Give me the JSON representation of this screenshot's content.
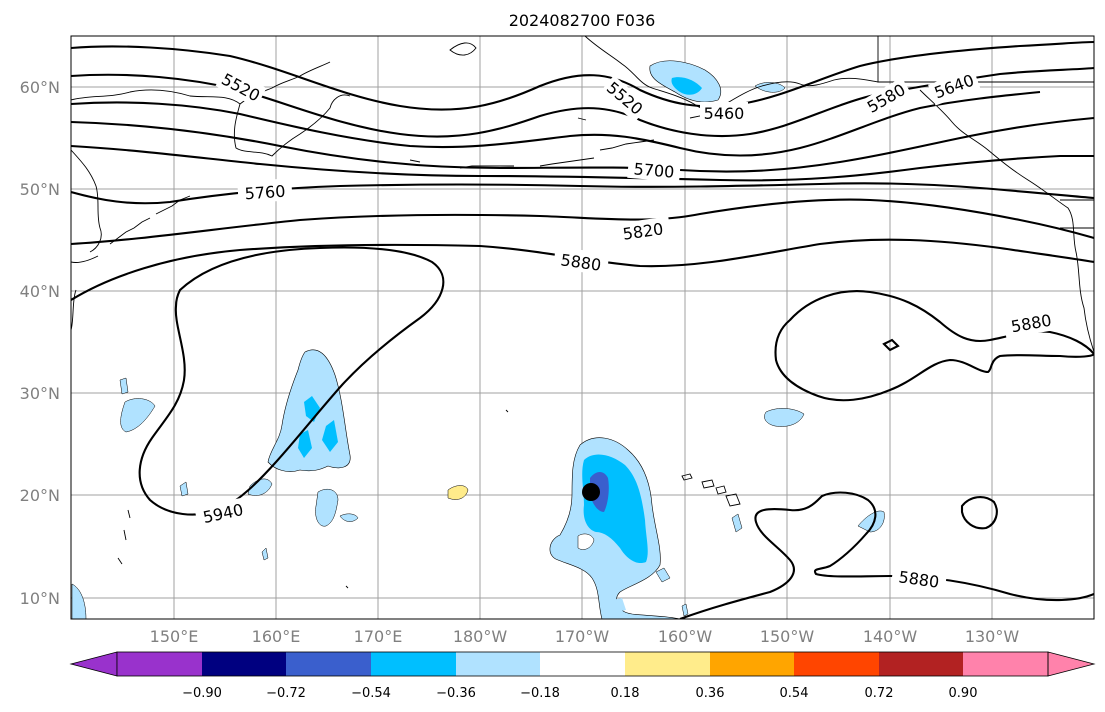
{
  "title": "2024082700 F036",
  "map": {
    "lat_labels": [
      "60°N",
      "50°N",
      "40°N",
      "30°N",
      "20°N",
      "10°N"
    ],
    "lon_labels": [
      "150°E",
      "160°E",
      "170°E",
      "180°W",
      "170°W",
      "160°W",
      "150°W",
      "140°W",
      "130°W"
    ],
    "height_contour_labels": [
      "5520",
      "5520",
      "5460",
      "5580",
      "5640",
      "5700",
      "5760",
      "5820",
      "5880",
      "5880",
      "5880",
      "5940"
    ],
    "marker": "storm-center-dot"
  },
  "colorbar": {
    "ticks": [
      "−0.90",
      "−0.72",
      "−0.54",
      "−0.36",
      "−0.18",
      "0.18",
      "0.36",
      "0.54",
      "0.72",
      "0.90"
    ],
    "colors": [
      "#9932CC",
      "#000080",
      "#3A5FCD",
      "#00BFFF",
      "#B0E2FF",
      "#FFFFFF",
      "#FFEC8B",
      "#FFA500",
      "#FF4500",
      "#B22222",
      "#FF82AB"
    ]
  }
}
